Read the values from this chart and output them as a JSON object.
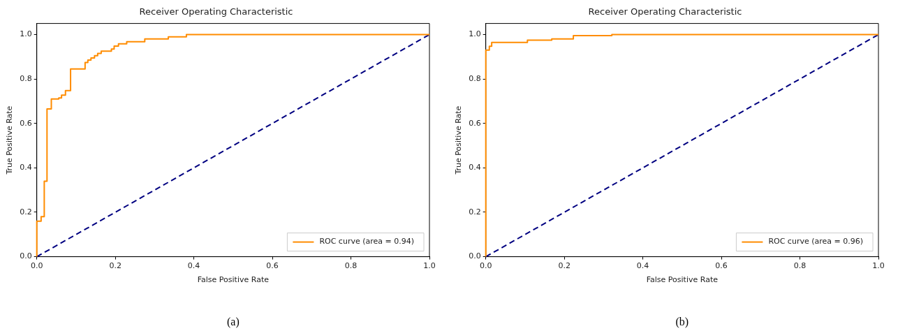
{
  "chart_data": [
    {
      "type": "line",
      "title": "Receiver Operating Characteristic",
      "xlabel": "False Positive Rate",
      "ylabel": "True Positive Rate",
      "xlim": [
        0,
        1
      ],
      "ylim": [
        0,
        1.05
      ],
      "xticks": [
        {
          "value": 0,
          "label": "0.0"
        },
        {
          "value": 0.2,
          "label": "0.2"
        },
        {
          "value": 0.4,
          "label": "0.4"
        },
        {
          "value": 0.6,
          "label": "0.6"
        },
        {
          "value": 0.8,
          "label": "0.8"
        },
        {
          "value": 1,
          "label": "1.0"
        }
      ],
      "yticks": [
        {
          "value": 0,
          "label": "0.0"
        },
        {
          "value": 0.2,
          "label": "0.2"
        },
        {
          "value": 0.4,
          "label": "0.4"
        },
        {
          "value": 0.6,
          "label": "0.6"
        },
        {
          "value": 0.8,
          "label": "0.8"
        },
        {
          "value": 1,
          "label": "1.0"
        }
      ],
      "legend": "bottom right",
      "grid": false,
      "marker": "none",
      "series": [
        {
          "name": "ROC curve (area = 0.94)",
          "color": "#ff8c00",
          "line_style": "solid",
          "x": [
            0,
            0,
            0.011,
            0.011,
            0.019,
            0.019,
            0.026,
            0.026,
            0.037,
            0.037,
            0.056,
            0.056,
            0.063,
            0.063,
            0.073,
            0.073,
            0.086,
            0.086,
            0.123,
            0.123,
            0.13,
            0.13,
            0.138,
            0.138,
            0.147,
            0.147,
            0.155,
            0.155,
            0.164,
            0.164,
            0.19,
            0.19,
            0.197,
            0.197,
            0.208,
            0.208,
            0.229,
            0.229,
            0.275,
            0.275,
            0.335,
            0.335,
            0.381,
            0.381,
            1
          ],
          "values": [
            0,
            0.16,
            0.16,
            0.18,
            0.18,
            0.34,
            0.34,
            0.665,
            0.665,
            0.71,
            0.71,
            0.715,
            0.715,
            0.727,
            0.727,
            0.748,
            0.748,
            0.845,
            0.845,
            0.874,
            0.874,
            0.885,
            0.885,
            0.895,
            0.895,
            0.905,
            0.905,
            0.915,
            0.915,
            0.925,
            0.925,
            0.935,
            0.935,
            0.948,
            0.948,
            0.958,
            0.958,
            0.968,
            0.968,
            0.98,
            0.98,
            0.99,
            0.99,
            1,
            1
          ]
        },
        {
          "color": "#000080",
          "line_style": "dashed",
          "x": [
            0,
            1
          ],
          "values": [
            0,
            1
          ]
        }
      ],
      "annotations": [
        "(a)"
      ]
    },
    {
      "type": "line",
      "title": "Receiver Operating Characteristic",
      "xlabel": "False Positive Rate",
      "ylabel": "True Positive Rate",
      "xlim": [
        0,
        1
      ],
      "ylim": [
        0,
        1.05
      ],
      "xticks": [
        {
          "value": 0,
          "label": "0.0"
        },
        {
          "value": 0.2,
          "label": "0.2"
        },
        {
          "value": 0.4,
          "label": "0.4"
        },
        {
          "value": 0.6,
          "label": "0.6"
        },
        {
          "value": 0.8,
          "label": "0.8"
        },
        {
          "value": 1,
          "label": "1.0"
        }
      ],
      "yticks": [
        {
          "value": 0,
          "label": "0.0"
        },
        {
          "value": 0.2,
          "label": "0.2"
        },
        {
          "value": 0.4,
          "label": "0.4"
        },
        {
          "value": 0.6,
          "label": "0.6"
        },
        {
          "value": 0.8,
          "label": "0.8"
        },
        {
          "value": 1,
          "label": "1.0"
        }
      ],
      "legend": "bottom right",
      "grid": false,
      "marker": "none",
      "series": [
        {
          "name": "ROC curve (area = 0.96)",
          "color": "#ff8c00",
          "line_style": "solid",
          "x": [
            0,
            0,
            0.009,
            0.009,
            0.015,
            0.015,
            0.106,
            0.106,
            0.168,
            0.168,
            0.223,
            0.223,
            0.321,
            0.321,
            1
          ],
          "values": [
            0,
            0.93,
            0.93,
            0.947,
            0.947,
            0.965,
            0.965,
            0.975,
            0.975,
            0.98,
            0.98,
            0.995,
            0.995,
            1,
            1
          ]
        },
        {
          "color": "#000080",
          "line_style": "dashed",
          "x": [
            0,
            1
          ],
          "values": [
            0,
            1
          ]
        }
      ],
      "annotations": [
        "(b)"
      ]
    }
  ]
}
